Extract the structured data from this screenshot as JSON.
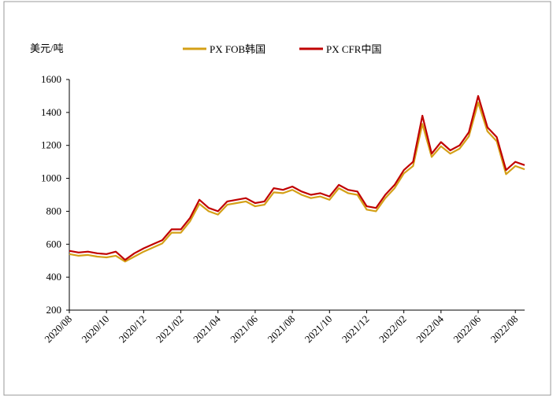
{
  "chart_data": {
    "type": "line",
    "y_label": "美元/吨",
    "categories": [
      "2020/08",
      null,
      null,
      null,
      "2020/10",
      null,
      null,
      null,
      "2020/12",
      null,
      null,
      null,
      "2021/02",
      null,
      null,
      null,
      "2021/04",
      null,
      null,
      null,
      "2021/06",
      null,
      null,
      null,
      "2021/08",
      null,
      null,
      null,
      "2021/10",
      null,
      null,
      null,
      "2021/12",
      null,
      null,
      null,
      "2022/02",
      null,
      null,
      null,
      "2022/04",
      null,
      null,
      null,
      "2022/06",
      null,
      null,
      null,
      "2022/08",
      null
    ],
    "series": [
      {
        "name": "PX FOB韩国",
        "color": "#d4a017",
        "values": [
          540,
          530,
          535,
          525,
          520,
          530,
          495,
          525,
          555,
          580,
          605,
          670,
          670,
          740,
          845,
          800,
          780,
          840,
          850,
          860,
          830,
          840,
          915,
          910,
          930,
          900,
          880,
          890,
          870,
          940,
          910,
          900,
          810,
          800,
          880,
          940,
          1030,
          1075,
          1330,
          1130,
          1195,
          1150,
          1180,
          1255,
          1460,
          1285,
          1225,
          1025,
          1075,
          1055
        ]
      },
      {
        "name": "PX CFR中国",
        "color": "#c00000",
        "values": [
          560,
          550,
          555,
          545,
          540,
          555,
          505,
          545,
          575,
          600,
          625,
          690,
          690,
          760,
          870,
          820,
          800,
          860,
          870,
          880,
          850,
          860,
          940,
          930,
          950,
          920,
          900,
          910,
          890,
          960,
          930,
          920,
          830,
          820,
          900,
          960,
          1050,
          1100,
          1380,
          1150,
          1220,
          1170,
          1200,
          1280,
          1500,
          1310,
          1250,
          1050,
          1100,
          1080
        ]
      }
    ],
    "ylim": [
      200,
      1600
    ],
    "yticks": [
      200,
      400,
      600,
      800,
      1000,
      1200,
      1400,
      1600
    ]
  }
}
